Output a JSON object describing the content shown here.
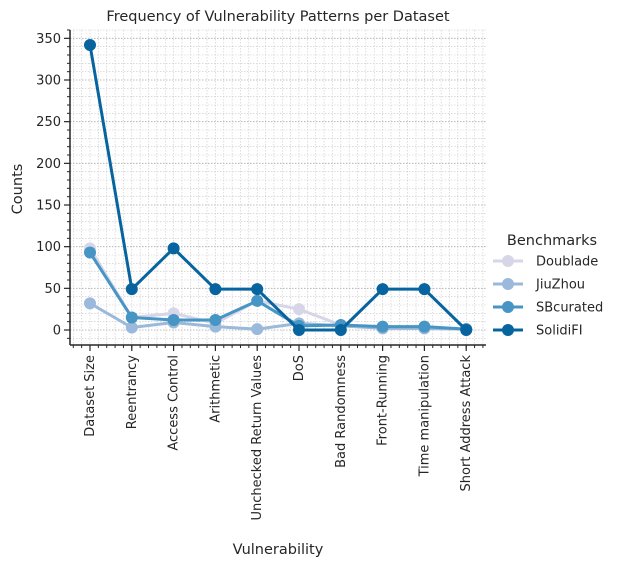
{
  "chart_data": {
    "type": "line",
    "title": "Frequency of Vulnerability Patterns per Dataset",
    "xlabel": "Vulnerability",
    "ylabel": "Counts",
    "ylim": [
      -18,
      360
    ],
    "yticks": [
      0,
      50,
      100,
      150,
      200,
      250,
      300,
      350
    ],
    "grid": true,
    "legend_placement": "right",
    "legend_title": "Benchmarks",
    "categories": [
      "Dataset Size",
      "Reentrancy",
      "Access Control",
      "Arithmetic",
      "Unchecked Return Values",
      "DoS",
      "Bad Randomness",
      "Front-Running",
      "Time manipulation",
      "Short Address Attack"
    ],
    "series": [
      {
        "name": "Doublade",
        "color": "#d6d6e8",
        "values": [
          98,
          15,
          20,
          8,
          35,
          25,
          6,
          2,
          2,
          1
        ]
      },
      {
        "name": "JiuZhou",
        "color": "#9bb9da",
        "values": [
          32,
          3,
          9,
          4,
          1,
          8,
          5,
          2,
          2,
          1
        ]
      },
      {
        "name": "SBcurated",
        "color": "#4795c4",
        "values": [
          93,
          15,
          12,
          12,
          35,
          5,
          6,
          4,
          4,
          1
        ]
      },
      {
        "name": "SolidiFI",
        "color": "#07649e",
        "values": [
          342,
          49,
          98,
          49,
          49,
          0,
          0,
          49,
          49,
          0
        ]
      }
    ]
  }
}
